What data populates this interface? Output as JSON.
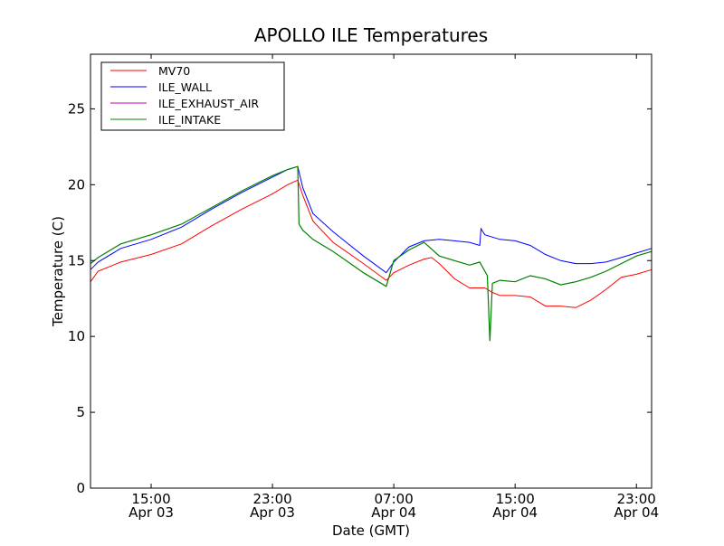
{
  "chart_data": {
    "type": "line",
    "title": "APOLLO ILE Temperatures",
    "xlabel": "Date (GMT)",
    "ylabel": "Temperature (C)",
    "xlim": [
      "2013-04-03 11:00",
      "2013-04-05 00:00"
    ],
    "ylim": [
      0,
      28.6
    ],
    "x_ticks": [
      {
        "x": "2013-04-03 15:00",
        "time": "15:00",
        "date": "Apr 03"
      },
      {
        "x": "2013-04-03 23:00",
        "time": "23:00",
        "date": "Apr 03"
      },
      {
        "x": "2013-04-04 07:00",
        "time": "07:00",
        "date": "Apr 04"
      },
      {
        "x": "2013-04-04 15:00",
        "time": "15:00",
        "date": "Apr 04"
      },
      {
        "x": "2013-04-04 23:00",
        "time": "23:00",
        "date": "Apr 04"
      }
    ],
    "y_ticks": [
      "0",
      "5",
      "10",
      "15",
      "20",
      "25"
    ],
    "grid": false,
    "legend_position": "top-left",
    "series": [
      {
        "name": "MV70",
        "color": "#ff0000",
        "points": [
          [
            "2013-04-03 11:00",
            13.6
          ],
          [
            "2013-04-03 11:30",
            14.3
          ],
          [
            "2013-04-03 13:00",
            14.9
          ],
          [
            "2013-04-03 15:00",
            15.4
          ],
          [
            "2013-04-03 17:00",
            16.1
          ],
          [
            "2013-04-03 19:00",
            17.3
          ],
          [
            "2013-04-03 21:00",
            18.4
          ],
          [
            "2013-04-03 23:00",
            19.4
          ],
          [
            "2013-04-04 00:00",
            20.0
          ],
          [
            "2013-04-04 00:40",
            20.3
          ],
          [
            "2013-04-04 01:00",
            19.3
          ],
          [
            "2013-04-04 01:40",
            17.6
          ],
          [
            "2013-04-04 03:00",
            16.2
          ],
          [
            "2013-04-04 05:00",
            14.8
          ],
          [
            "2013-04-04 06:30",
            13.7
          ],
          [
            "2013-04-04 07:00",
            14.2
          ],
          [
            "2013-04-04 08:00",
            14.7
          ],
          [
            "2013-04-04 09:00",
            15.1
          ],
          [
            "2013-04-04 09:30",
            15.2
          ],
          [
            "2013-04-04 10:00",
            14.8
          ],
          [
            "2013-04-04 11:00",
            13.8
          ],
          [
            "2013-04-04 12:00",
            13.2
          ],
          [
            "2013-04-04 13:00",
            13.2
          ],
          [
            "2013-04-04 13:30",
            12.9
          ],
          [
            "2013-04-04 14:00",
            12.7
          ],
          [
            "2013-04-04 15:00",
            12.7
          ],
          [
            "2013-04-04 16:00",
            12.6
          ],
          [
            "2013-04-04 17:00",
            12.0
          ],
          [
            "2013-04-04 18:00",
            12.0
          ],
          [
            "2013-04-04 19:00",
            11.9
          ],
          [
            "2013-04-04 20:00",
            12.4
          ],
          [
            "2013-04-04 21:00",
            13.1
          ],
          [
            "2013-04-04 22:00",
            13.9
          ],
          [
            "2013-04-04 23:00",
            14.1
          ],
          [
            "2013-04-05 00:00",
            14.4
          ]
        ]
      },
      {
        "name": "ILE_WALL",
        "color": "#0000ff",
        "points": [
          [
            "2013-04-03 11:00",
            14.4
          ],
          [
            "2013-04-03 11:30",
            14.9
          ],
          [
            "2013-04-03 13:00",
            15.8
          ],
          [
            "2013-04-03 15:00",
            16.4
          ],
          [
            "2013-04-03 17:00",
            17.2
          ],
          [
            "2013-04-03 19:00",
            18.4
          ],
          [
            "2013-04-03 21:00",
            19.5
          ],
          [
            "2013-04-03 23:00",
            20.5
          ],
          [
            "2013-04-04 00:00",
            21.0
          ],
          [
            "2013-04-04 00:40",
            21.2
          ],
          [
            "2013-04-04 01:00",
            19.8
          ],
          [
            "2013-04-04 01:40",
            18.1
          ],
          [
            "2013-04-04 03:00",
            16.9
          ],
          [
            "2013-04-04 05:00",
            15.3
          ],
          [
            "2013-04-04 06:30",
            14.2
          ],
          [
            "2013-04-04 07:00",
            14.9
          ],
          [
            "2013-04-04 08:00",
            15.9
          ],
          [
            "2013-04-04 09:00",
            16.3
          ],
          [
            "2013-04-04 10:00",
            16.4
          ],
          [
            "2013-04-04 11:00",
            16.3
          ],
          [
            "2013-04-04 12:00",
            16.2
          ],
          [
            "2013-04-04 12:40",
            16.0
          ],
          [
            "2013-04-04 12:45",
            17.1
          ],
          [
            "2013-04-04 13:00",
            16.7
          ],
          [
            "2013-04-04 14:00",
            16.4
          ],
          [
            "2013-04-04 15:00",
            16.3
          ],
          [
            "2013-04-04 16:00",
            16.0
          ],
          [
            "2013-04-04 17:00",
            15.4
          ],
          [
            "2013-04-04 18:00",
            15.0
          ],
          [
            "2013-04-04 19:00",
            14.8
          ],
          [
            "2013-04-04 20:00",
            14.8
          ],
          [
            "2013-04-04 21:00",
            14.9
          ],
          [
            "2013-04-04 22:00",
            15.2
          ],
          [
            "2013-04-04 23:00",
            15.5
          ],
          [
            "2013-04-05 00:00",
            15.8
          ]
        ]
      },
      {
        "name": "ILE_EXHAUST_AIR",
        "color": "#bf00bf",
        "points": []
      },
      {
        "name": "ILE_INTAKE",
        "color": "#008000",
        "points": [
          [
            "2013-04-03 11:00",
            14.8
          ],
          [
            "2013-04-03 11:30",
            15.2
          ],
          [
            "2013-04-03 13:00",
            16.1
          ],
          [
            "2013-04-03 15:00",
            16.7
          ],
          [
            "2013-04-03 17:00",
            17.4
          ],
          [
            "2013-04-03 19:00",
            18.5
          ],
          [
            "2013-04-03 21:00",
            19.6
          ],
          [
            "2013-04-03 23:00",
            20.6
          ],
          [
            "2013-04-04 00:00",
            21.0
          ],
          [
            "2013-04-04 00:40",
            21.2
          ],
          [
            "2013-04-04 00:45",
            17.4
          ],
          [
            "2013-04-04 01:00",
            17.0
          ],
          [
            "2013-04-04 01:40",
            16.4
          ],
          [
            "2013-04-04 03:00",
            15.6
          ],
          [
            "2013-04-04 05:00",
            14.2
          ],
          [
            "2013-04-04 06:30",
            13.3
          ],
          [
            "2013-04-04 07:00",
            15.0
          ],
          [
            "2013-04-04 08:00",
            15.7
          ],
          [
            "2013-04-04 09:00",
            16.2
          ],
          [
            "2013-04-04 10:00",
            15.3
          ],
          [
            "2013-04-04 11:00",
            15.0
          ],
          [
            "2013-04-04 12:00",
            14.7
          ],
          [
            "2013-04-04 12:40",
            14.9
          ],
          [
            "2013-04-04 13:10",
            14.0
          ],
          [
            "2013-04-04 13:20",
            9.7
          ],
          [
            "2013-04-04 13:30",
            13.5
          ],
          [
            "2013-04-04 14:00",
            13.7
          ],
          [
            "2013-04-04 15:00",
            13.6
          ],
          [
            "2013-04-04 16:00",
            14.0
          ],
          [
            "2013-04-04 17:00",
            13.8
          ],
          [
            "2013-04-04 18:00",
            13.4
          ],
          [
            "2013-04-04 19:00",
            13.6
          ],
          [
            "2013-04-04 20:00",
            13.9
          ],
          [
            "2013-04-04 21:00",
            14.3
          ],
          [
            "2013-04-04 22:00",
            14.8
          ],
          [
            "2013-04-04 23:00",
            15.3
          ],
          [
            "2013-04-05 00:00",
            15.6
          ]
        ]
      }
    ]
  }
}
